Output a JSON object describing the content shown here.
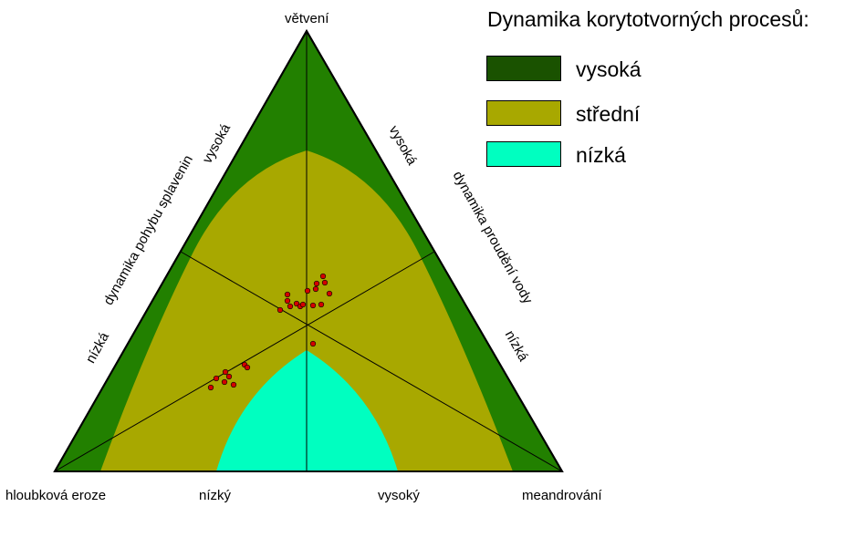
{
  "vertices": {
    "top": "větvení",
    "left": "hloubková eroze",
    "right": "meandrování"
  },
  "bottom_axis": {
    "low": "nízký",
    "high": "vysoký"
  },
  "left_axis": {
    "title": "dynamika pohybu splavenin",
    "high": "vysoká",
    "low": "nízká"
  },
  "right_axis": {
    "title": "dynamika proudění vody",
    "high": "vysoká",
    "low": "nízká"
  },
  "legend": {
    "title": "Dynamika korytotvorných procesů:",
    "items": [
      {
        "label": "vysoká",
        "color": "#1a5200"
      },
      {
        "label": "střední",
        "color": "#a8a800"
      },
      {
        "label": "nízká",
        "color": "#00ffc0"
      }
    ]
  },
  "colors": {
    "outer_band": "#228000",
    "middle_zone": "#a8a800",
    "inner_zone": "#00ffc0",
    "points": "#d40000"
  }
}
